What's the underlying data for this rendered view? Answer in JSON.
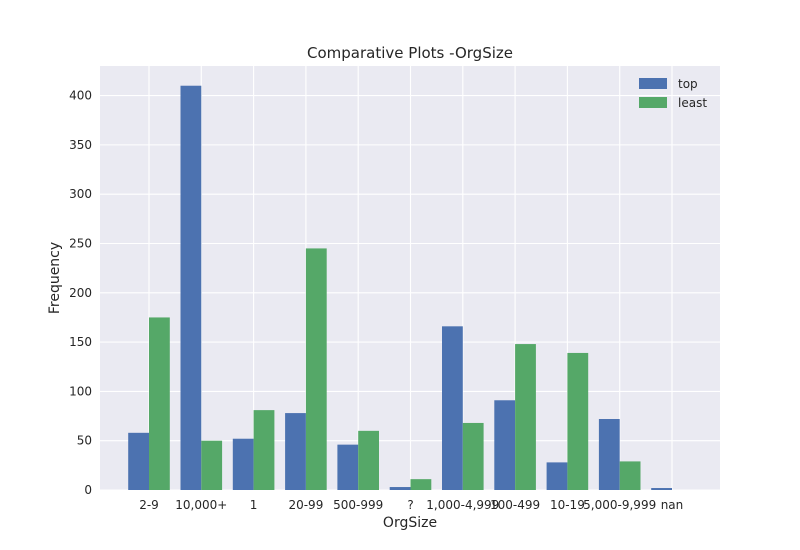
{
  "chart_data": {
    "type": "bar",
    "title": "Comparative Plots -OrgSize",
    "xlabel": "OrgSize",
    "ylabel": "Frequency",
    "categories": [
      "2-9",
      "10,000+",
      "1",
      "20-99",
      "500-999",
      "?",
      "1,000-4,999",
      "100-499",
      "10-19",
      "5,000-9,999",
      "nan"
    ],
    "series": [
      {
        "name": "top",
        "color": "#4c72b0",
        "values": [
          58,
          410,
          52,
          78,
          46,
          3,
          166,
          91,
          28,
          72,
          2
        ]
      },
      {
        "name": "least",
        "color": "#55a868",
        "values": [
          175,
          50,
          81,
          245,
          60,
          11,
          68,
          148,
          139,
          29,
          0
        ]
      }
    ],
    "ylim": [
      0,
      430
    ],
    "yticks": [
      0,
      50,
      100,
      150,
      200,
      250,
      300,
      350,
      400
    ],
    "grid": true,
    "legend": "top-right",
    "background": "#eaeaf2",
    "grid_color": "#ffffff"
  }
}
